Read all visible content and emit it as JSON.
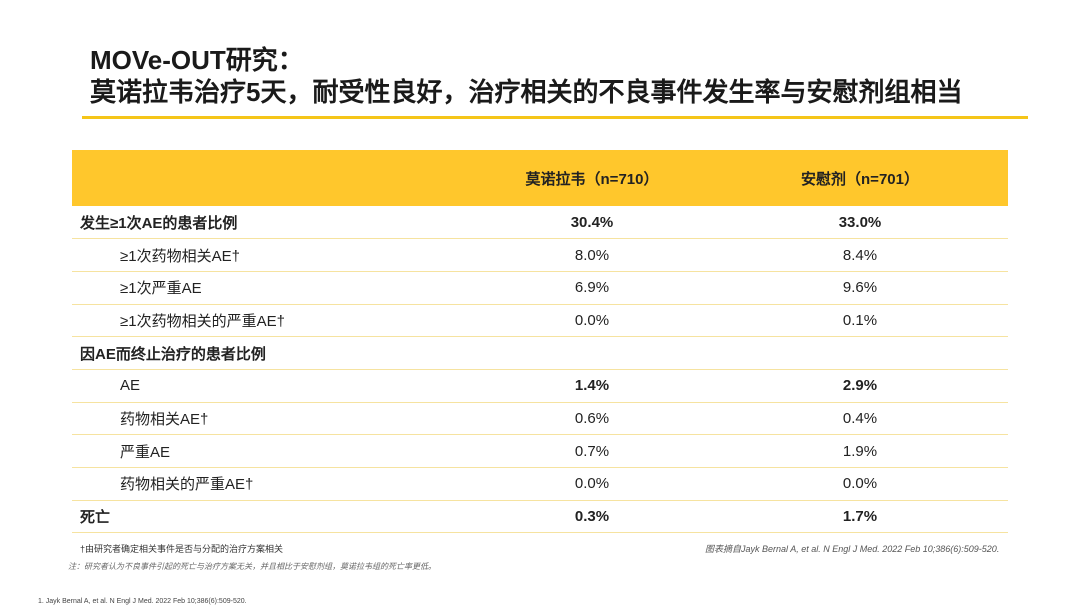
{
  "title": {
    "line1": "MOVe-OUT研究：",
    "line2": "莫诺拉韦治疗5天，耐受性良好，治疗相关的不良事件发生率与安慰剂组相当"
  },
  "table": {
    "headers": [
      "",
      "莫诺拉韦（n=710）",
      "安慰剂（n=701）"
    ],
    "rows": [
      {
        "label": "发生≥1次AE的患者比例",
        "a": "30.4%",
        "b": "33.0%"
      },
      {
        "label": "≥1次药物相关AE†",
        "a": "8.0%",
        "b": "8.4%"
      },
      {
        "label": "≥1次严重AE",
        "a": "6.9%",
        "b": "9.6%"
      },
      {
        "label": "≥1次药物相关的严重AE†",
        "a": "0.0%",
        "b": "0.1%"
      },
      {
        "label": "因AE而终止治疗的患者比例",
        "a": "",
        "b": ""
      },
      {
        "label": "AE",
        "a": "1.4%",
        "b": "2.9%"
      },
      {
        "label": "药物相关AE†",
        "a": "0.6%",
        "b": "0.4%"
      },
      {
        "label": "严重AE",
        "a": "0.7%",
        "b": "1.9%"
      },
      {
        "label": "药物相关的严重AE†",
        "a": "0.0%",
        "b": "0.0%"
      },
      {
        "label": "死亡",
        "a": "0.3%",
        "b": "1.7%"
      }
    ]
  },
  "footnotes": {
    "dagger": "†由研究者确定相关事件是否与分配的治疗方案相关",
    "source": "图表摘自Jayk Bernal A, et al. N Engl J Med. 2022 Feb 10;386(6):509-520.",
    "note": "注：研究者认为不良事件引起的死亡与治疗方案无关，并且相比于安慰剂组，莫诺拉韦组的死亡率更低。",
    "reference": "1.    Jayk Bernal A, et al. N Engl J Med. 2022 Feb 10;386(6):509-520."
  }
}
